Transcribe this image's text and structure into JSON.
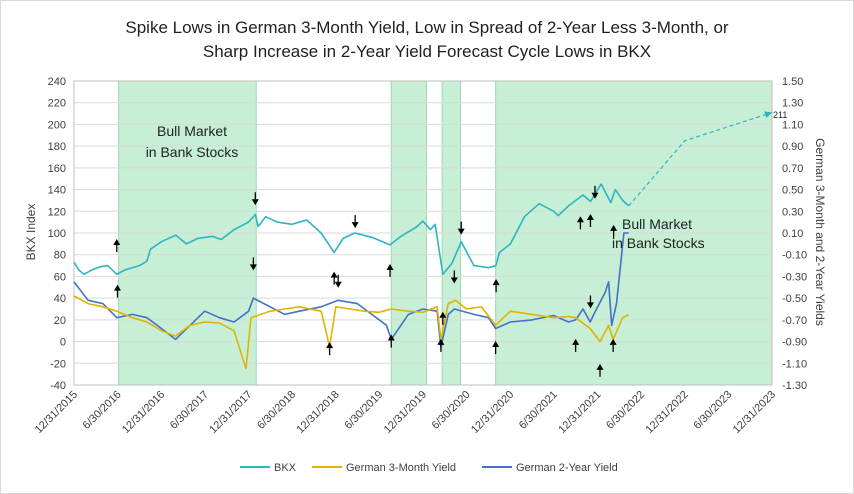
{
  "chart_data": {
    "type": "line",
    "title_lines": [
      "Spike Lows in German 3-Month Yield, Low in Spread of 2-Year Less 3-Month, or",
      "Sharp Increase in 2-Year Yield Forecast Cycle Lows in BKX"
    ],
    "ylabel_left": "BKX Index",
    "ylabel_right": "German 3-Month and 2-Year Yields",
    "y_left_range": [
      -40,
      240
    ],
    "y_left_ticks": [
      "240",
      "220",
      "200",
      "180",
      "160",
      "140",
      "120",
      "100",
      "80",
      "60",
      "40",
      "20",
      "0",
      "-20",
      "-40"
    ],
    "y_right_range": [
      -1.3,
      1.5
    ],
    "y_right_ticks": [
      "1.50",
      "1.30",
      "1.10",
      "0.90",
      "0.70",
      "0.50",
      "0.30",
      "0.10",
      "-0.10",
      "-0.30",
      "-0.50",
      "-0.70",
      "-0.90",
      "-1.10",
      "-1.30"
    ],
    "x_range": [
      "2015-12-31",
      "2023-12-31"
    ],
    "x_ticks": [
      "12/31/2015",
      "6/30/2016",
      "12/31/2016",
      "6/30/2017",
      "12/31/2017",
      "6/30/2018",
      "12/31/2018",
      "6/30/2019",
      "12/31/2019",
      "6/30/2020",
      "12/31/2020",
      "6/30/2021",
      "12/31/2021",
      "6/30/2022",
      "12/31/2022",
      "6/30/2023",
      "12/31/2023"
    ],
    "bull_market_periods": [
      {
        "start": "2016-07-05",
        "end": "2018-02-01"
      },
      {
        "start": "2019-08-20",
        "end": "2020-01-15"
      },
      {
        "start": "2020-03-20",
        "end": "2020-06-05"
      },
      {
        "start": "2020-10-30",
        "end": "2023-12-31"
      }
    ],
    "annotations": [
      {
        "text_lines": [
          "Bull Market",
          "in Bank Stocks"
        ],
        "at": "2017-01-25",
        "y": 200
      },
      {
        "text_lines": [
          "Bull Market",
          "in Bank Stocks"
        ],
        "at": "2022-05-05",
        "y": 112
      }
    ],
    "forecast": {
      "label": "211",
      "points": [
        [
          "2022-05-10",
          125
        ],
        [
          "2022-12-31",
          185
        ],
        [
          "2023-12-31",
          211
        ]
      ]
    },
    "cycle_low_arrows": {
      "bkx_up": [
        [
          "2016-06-30",
          58
        ],
        [
          "2018-12-24",
          70
        ],
        [
          "2019-08-15",
          77
        ],
        [
          "2020-03-23",
          33
        ],
        [
          "2020-11-01",
          63
        ],
        [
          "2021-10-20",
          121
        ],
        [
          "2021-12-01",
          123
        ],
        [
          "2022-03-08",
          113
        ]
      ],
      "bkx_down": [
        [
          "2018-01-28",
          120
        ],
        [
          "2019-03-22",
          99
        ],
        [
          "2020-06-08",
          93
        ],
        [
          "2021-12-20",
          126
        ]
      ],
      "yield_up": [
        [
          "2016-06-27",
          0.1
        ],
        [
          "2018-12-05",
          -0.85
        ],
        [
          "2019-08-20",
          -0.78
        ],
        [
          "2020-03-15",
          -0.82
        ],
        [
          "2020-10-30",
          -0.84
        ],
        [
          "2021-09-30",
          -0.82
        ],
        [
          "2022-01-10",
          -1.05
        ],
        [
          "2022-03-06",
          -0.82
        ]
      ],
      "yield_down": [
        [
          "2018-01-20",
          -0.3
        ],
        [
          "2019-01-10",
          -0.46
        ],
        [
          "2020-05-10",
          -0.42
        ],
        [
          "2021-12-01",
          -0.65
        ]
      ]
    },
    "series": [
      {
        "name": "BKX",
        "axis": "left",
        "color": "#2db5c0",
        "points": [
          [
            "2015-12-31",
            73
          ],
          [
            "2016-01-20",
            66
          ],
          [
            "2016-02-11",
            62
          ],
          [
            "2016-03-15",
            66
          ],
          [
            "2016-04-20",
            69
          ],
          [
            "2016-05-20",
            70
          ],
          [
            "2016-06-27",
            62
          ],
          [
            "2016-07-31",
            66
          ],
          [
            "2016-09-30",
            70
          ],
          [
            "2016-10-31",
            74
          ],
          [
            "2016-11-15",
            85
          ],
          [
            "2016-12-31",
            92
          ],
          [
            "2017-03-01",
            98
          ],
          [
            "2017-04-15",
            90
          ],
          [
            "2017-06-01",
            95
          ],
          [
            "2017-07-31",
            97
          ],
          [
            "2017-09-07",
            94
          ],
          [
            "2017-10-31",
            103
          ],
          [
            "2017-12-31",
            110
          ],
          [
            "2018-01-28",
            117
          ],
          [
            "2018-02-09",
            106
          ],
          [
            "2018-03-12",
            115
          ],
          [
            "2018-04-30",
            110
          ],
          [
            "2018-06-30",
            108
          ],
          [
            "2018-08-31",
            112
          ],
          [
            "2018-10-31",
            100
          ],
          [
            "2018-12-24",
            82
          ],
          [
            "2019-01-31",
            95
          ],
          [
            "2019-03-20",
            100
          ],
          [
            "2019-05-31",
            96
          ],
          [
            "2019-08-15",
            89
          ],
          [
            "2019-09-30",
            97
          ],
          [
            "2019-11-30",
            105
          ],
          [
            "2019-12-31",
            111
          ],
          [
            "2020-01-31",
            103
          ],
          [
            "2020-02-20",
            108
          ],
          [
            "2020-03-23",
            62
          ],
          [
            "2020-04-30",
            72
          ],
          [
            "2020-06-08",
            92
          ],
          [
            "2020-07-31",
            70
          ],
          [
            "2020-09-30",
            68
          ],
          [
            "2020-10-31",
            70
          ],
          [
            "2020-11-15",
            82
          ],
          [
            "2020-12-31",
            90
          ],
          [
            "2021-02-28",
            115
          ],
          [
            "2021-04-30",
            127
          ],
          [
            "2021-06-30",
            120
          ],
          [
            "2021-07-19",
            116
          ],
          [
            "2021-08-31",
            125
          ],
          [
            "2021-10-31",
            135
          ],
          [
            "2021-12-01",
            129
          ],
          [
            "2021-12-31",
            140
          ],
          [
            "2022-01-15",
            145
          ],
          [
            "2022-02-24",
            128
          ],
          [
            "2022-03-15",
            140
          ],
          [
            "2022-04-15",
            130
          ],
          [
            "2022-05-10",
            125
          ]
        ]
      },
      {
        "name": "German 3-Month Yield",
        "axis": "right",
        "color": "#e0b400",
        "points": [
          [
            "2015-12-31",
            -0.48
          ],
          [
            "2016-02-28",
            -0.55
          ],
          [
            "2016-04-30",
            -0.58
          ],
          [
            "2016-06-27",
            -0.62
          ],
          [
            "2016-08-31",
            -0.68
          ],
          [
            "2016-10-31",
            -0.72
          ],
          [
            "2016-12-31",
            -0.8
          ],
          [
            "2017-02-28",
            -0.85
          ],
          [
            "2017-04-30",
            -0.75
          ],
          [
            "2017-06-30",
            -0.72
          ],
          [
            "2017-08-31",
            -0.73
          ],
          [
            "2017-10-31",
            -0.8
          ],
          [
            "2017-12-20",
            -1.15
          ],
          [
            "2018-01-10",
            -0.68
          ],
          [
            "2018-03-31",
            -0.62
          ],
          [
            "2018-05-31",
            -0.6
          ],
          [
            "2018-07-31",
            -0.58
          ],
          [
            "2018-10-31",
            -0.62
          ],
          [
            "2018-12-05",
            -0.95
          ],
          [
            "2018-12-31",
            -0.58
          ],
          [
            "2019-02-28",
            -0.6
          ],
          [
            "2019-04-30",
            -0.62
          ],
          [
            "2019-06-30",
            -0.63
          ],
          [
            "2019-08-20",
            -0.6
          ],
          [
            "2019-10-31",
            -0.62
          ],
          [
            "2019-12-31",
            -0.63
          ],
          [
            "2020-02-28",
            -0.58
          ],
          [
            "2020-03-15",
            -0.88
          ],
          [
            "2020-04-15",
            -0.55
          ],
          [
            "2020-05-15",
            -0.52
          ],
          [
            "2020-06-30",
            -0.6
          ],
          [
            "2020-08-31",
            -0.58
          ],
          [
            "2020-10-30",
            -0.75
          ],
          [
            "2020-12-31",
            -0.62
          ],
          [
            "2021-03-31",
            -0.65
          ],
          [
            "2021-06-30",
            -0.68
          ],
          [
            "2021-08-31",
            -0.67
          ],
          [
            "2021-09-30",
            -0.68
          ],
          [
            "2021-11-30",
            -0.78
          ],
          [
            "2022-01-10",
            -0.9
          ],
          [
            "2022-02-15",
            -0.75
          ],
          [
            "2022-03-06",
            -0.88
          ],
          [
            "2022-04-15",
            -0.68
          ],
          [
            "2022-05-10",
            -0.65
          ]
        ]
      },
      {
        "name": "German 2-Year Yield",
        "axis": "right",
        "color": "#4472c4",
        "points": [
          [
            "2015-12-31",
            -0.35
          ],
          [
            "2016-02-28",
            -0.52
          ],
          [
            "2016-04-30",
            -0.55
          ],
          [
            "2016-06-27",
            -0.68
          ],
          [
            "2016-08-31",
            -0.65
          ],
          [
            "2016-10-31",
            -0.68
          ],
          [
            "2016-12-31",
            -0.78
          ],
          [
            "2017-02-28",
            -0.88
          ],
          [
            "2017-04-30",
            -0.75
          ],
          [
            "2017-06-30",
            -0.62
          ],
          [
            "2017-08-31",
            -0.68
          ],
          [
            "2017-10-31",
            -0.72
          ],
          [
            "2017-12-31",
            -0.62
          ],
          [
            "2018-01-20",
            -0.5
          ],
          [
            "2018-03-31",
            -0.58
          ],
          [
            "2018-05-31",
            -0.65
          ],
          [
            "2018-07-31",
            -0.62
          ],
          [
            "2018-10-31",
            -0.58
          ],
          [
            "2019-01-10",
            -0.52
          ],
          [
            "2019-03-31",
            -0.55
          ],
          [
            "2019-05-31",
            -0.65
          ],
          [
            "2019-07-31",
            -0.75
          ],
          [
            "2019-08-20",
            -0.88
          ],
          [
            "2019-10-31",
            -0.65
          ],
          [
            "2019-12-31",
            -0.6
          ],
          [
            "2020-02-28",
            -0.62
          ],
          [
            "2020-03-15",
            -0.95
          ],
          [
            "2020-04-15",
            -0.65
          ],
          [
            "2020-05-10",
            -0.6
          ],
          [
            "2020-07-31",
            -0.65
          ],
          [
            "2020-09-30",
            -0.68
          ],
          [
            "2020-10-30",
            -0.78
          ],
          [
            "2020-12-31",
            -0.72
          ],
          [
            "2021-03-31",
            -0.7
          ],
          [
            "2021-06-30",
            -0.66
          ],
          [
            "2021-08-31",
            -0.72
          ],
          [
            "2021-09-30",
            -0.7
          ],
          [
            "2021-10-31",
            -0.6
          ],
          [
            "2021-11-30",
            -0.72
          ],
          [
            "2021-12-15",
            -0.65
          ],
          [
            "2022-01-31",
            -0.45
          ],
          [
            "2022-02-15",
            -0.35
          ],
          [
            "2022-02-28",
            -0.75
          ],
          [
            "2022-03-20",
            -0.55
          ],
          [
            "2022-04-20",
            0.1
          ],
          [
            "2022-05-10",
            0.1
          ]
        ]
      }
    ],
    "legend": [
      "BKX",
      "German 3-Month Yield",
      "German 2-Year Yield"
    ],
    "legend_position": "bottom"
  }
}
